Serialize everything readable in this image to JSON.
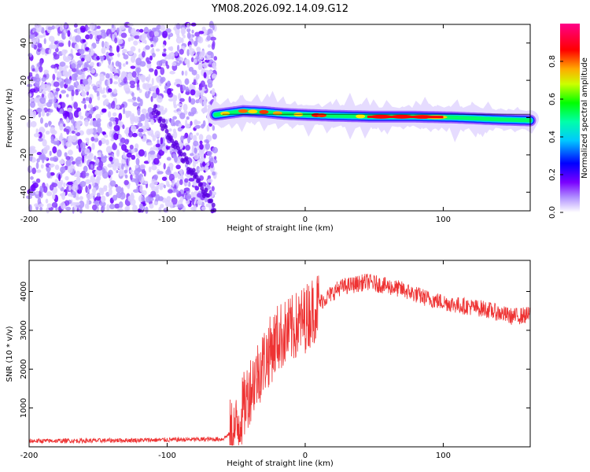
{
  "title": "YM08.2026.092.14.09.G12",
  "chart_data": [
    {
      "type": "heatmap",
      "xlabel": "Height of straight line (km)",
      "ylabel": "Frequency (Hz)",
      "xlim": [
        -200,
        163
      ],
      "ylim": [
        -50,
        50
      ],
      "xticks": [
        -200,
        -100,
        0,
        100
      ],
      "yticks": [
        -40,
        -20,
        0,
        20,
        40
      ],
      "colorbar": {
        "label": "Normalized spectral amplitude",
        "range": [
          0,
          1
        ],
        "ticks": [
          "0.0",
          "0.2",
          "0.4",
          "0.6",
          "0.8"
        ],
        "tick_values": [
          0.0,
          0.2,
          0.4,
          0.6,
          0.8
        ],
        "colors": [
          "#ffffff",
          "#7a00ff",
          "#0000ff",
          "#00ffff",
          "#00ff00",
          "#ffff00",
          "#ff8000",
          "#ff0000",
          "#ff0080"
        ]
      },
      "features": {
        "noise_region_x": [
          -200,
          -65
        ],
        "signal_start_x": -65,
        "signal_track": [
          {
            "x": -65,
            "f": 1.5
          },
          {
            "x": -55,
            "f": 2.5
          },
          {
            "x": -45,
            "f": 3.5
          },
          {
            "x": -30,
            "f": 3.0
          },
          {
            "x": -15,
            "f": 2.0
          },
          {
            "x": 0,
            "f": 1.5
          },
          {
            "x": 20,
            "f": 1.0
          },
          {
            "x": 50,
            "f": 0.5
          },
          {
            "x": 80,
            "f": 0.5
          },
          {
            "x": 110,
            "f": 0.0
          },
          {
            "x": 140,
            "f": -1.0
          },
          {
            "x": 163,
            "f": -1.5
          }
        ]
      }
    },
    {
      "type": "line",
      "xlabel": "Height of straight line (km)",
      "ylabel": "SNR (10 * v/v)",
      "xlim": [
        -200,
        163
      ],
      "ylim": [
        0,
        4800
      ],
      "xticks": [
        -200,
        -100,
        0,
        100
      ],
      "yticks": [
        1000,
        2000,
        3000,
        4000
      ],
      "color": "#ee3333",
      "series_envelope": [
        {
          "x": -200,
          "y": 150
        },
        {
          "x": -150,
          "y": 160
        },
        {
          "x": -100,
          "y": 180
        },
        {
          "x": -60,
          "y": 200
        },
        {
          "x": -50,
          "y": 450
        },
        {
          "x": -40,
          "y": 1500
        },
        {
          "x": -30,
          "y": 2200
        },
        {
          "x": -20,
          "y": 2800
        },
        {
          "x": -10,
          "y": 3000
        },
        {
          "x": 0,
          "y": 3300
        },
        {
          "x": 10,
          "y": 3700
        },
        {
          "x": 25,
          "y": 4100
        },
        {
          "x": 45,
          "y": 4250
        },
        {
          "x": 70,
          "y": 4050
        },
        {
          "x": 90,
          "y": 3800
        },
        {
          "x": 110,
          "y": 3650
        },
        {
          "x": 130,
          "y": 3550
        },
        {
          "x": 150,
          "y": 3350
        },
        {
          "x": 163,
          "y": 3400
        }
      ]
    }
  ]
}
